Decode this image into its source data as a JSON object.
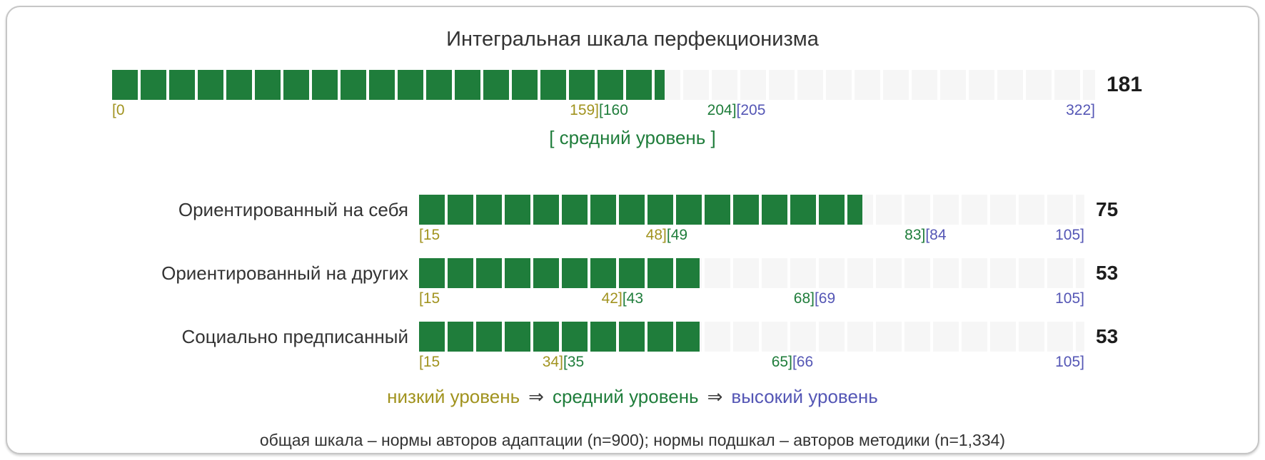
{
  "title": "Интегральная шкала перфекционизма",
  "colors": {
    "fill": "#1f7d3b",
    "empty": "#f6f6f6",
    "low": "#a1931f",
    "mid": "#1f7d3b",
    "high": "#5456b5",
    "value": "#1d1d1d",
    "text": "#333333",
    "arrow": "#3c3c3c"
  },
  "main_scale": {
    "value": 181,
    "value_label": "181",
    "min": 0,
    "max": 322,
    "level_label": "[ средний уровень ]",
    "ticks": [
      {
        "align": "left",
        "parts": [
          {
            "text": "[0",
            "level": "low"
          }
        ]
      },
      {
        "align": "center",
        "between": [
          159,
          160
        ],
        "parts": [
          {
            "text": "159]",
            "level": "low"
          },
          {
            "text": "[160",
            "level": "mid"
          }
        ]
      },
      {
        "align": "center",
        "between": [
          204,
          205
        ],
        "parts": [
          {
            "text": "204]",
            "level": "mid"
          },
          {
            "text": "[205",
            "level": "high"
          }
        ]
      },
      {
        "align": "right",
        "parts": [
          {
            "text": "322]",
            "level": "high"
          }
        ]
      }
    ]
  },
  "subscales": [
    {
      "label": "Ориентированный на себя",
      "value": 75,
      "value_label": "75",
      "min": 15,
      "max": 105,
      "ticks": [
        {
          "align": "left",
          "parts": [
            {
              "text": "[15",
              "level": "low"
            }
          ]
        },
        {
          "align": "center",
          "between": [
            48,
            49
          ],
          "parts": [
            {
              "text": "48]",
              "level": "low"
            },
            {
              "text": "[49",
              "level": "mid"
            }
          ]
        },
        {
          "align": "center",
          "between": [
            83,
            84
          ],
          "parts": [
            {
              "text": "83]",
              "level": "mid"
            },
            {
              "text": "[84",
              "level": "high"
            }
          ]
        },
        {
          "align": "right",
          "parts": [
            {
              "text": "105]",
              "level": "high"
            }
          ]
        }
      ]
    },
    {
      "label": "Ориентированный на других",
      "value": 53,
      "value_label": "53",
      "min": 15,
      "max": 105,
      "ticks": [
        {
          "align": "left",
          "parts": [
            {
              "text": "[15",
              "level": "low"
            }
          ]
        },
        {
          "align": "center",
          "between": [
            42,
            43
          ],
          "parts": [
            {
              "text": "42]",
              "level": "low"
            },
            {
              "text": "[43",
              "level": "mid"
            }
          ]
        },
        {
          "align": "center",
          "between": [
            68,
            69
          ],
          "parts": [
            {
              "text": "68]",
              "level": "mid"
            },
            {
              "text": "[69",
              "level": "high"
            }
          ]
        },
        {
          "align": "right",
          "parts": [
            {
              "text": "105]",
              "level": "high"
            }
          ]
        }
      ]
    },
    {
      "label": "Социально предписанный",
      "value": 53,
      "value_label": "53",
      "min": 15,
      "max": 105,
      "ticks": [
        {
          "align": "left",
          "parts": [
            {
              "text": "[15",
              "level": "low"
            }
          ]
        },
        {
          "align": "center",
          "between": [
            34,
            35
          ],
          "parts": [
            {
              "text": "34]",
              "level": "low"
            },
            {
              "text": "[35",
              "level": "mid"
            }
          ]
        },
        {
          "align": "center",
          "between": [
            65,
            66
          ],
          "parts": [
            {
              "text": "65]",
              "level": "mid"
            },
            {
              "text": "[66",
              "level": "high"
            }
          ]
        },
        {
          "align": "right",
          "parts": [
            {
              "text": "105]",
              "level": "high"
            }
          ]
        }
      ]
    }
  ],
  "legend": {
    "low": "низкий уровень",
    "arrow": "⇒",
    "mid": "средний уровень",
    "high": "высокий уровень"
  },
  "footnote": "общая шкала – нормы авторов адаптации (n=900); нормы подшкал – авторов методики (n=1,334)",
  "chart_data": {
    "type": "bar",
    "title": "Интегральная шкала перфекционизма",
    "categories": [
      "Интегральная шкала перфекционизма",
      "Ориентированный на себя",
      "Ориентированный на других",
      "Социально предписанный"
    ],
    "values": [
      181,
      75,
      53,
      53
    ],
    "axis_ranges": [
      [
        0,
        322
      ],
      [
        15,
        105
      ],
      [
        15,
        105
      ],
      [
        15,
        105
      ]
    ],
    "level_zones": [
      {
        "category": "Интегральная шкала перфекционизма",
        "low": [
          0,
          159
        ],
        "mid": [
          160,
          204
        ],
        "high": [
          205,
          322
        ]
      },
      {
        "category": "Ориентированный на себя",
        "low": [
          15,
          48
        ],
        "mid": [
          49,
          83
        ],
        "high": [
          84,
          105
        ]
      },
      {
        "category": "Ориентированный на других",
        "low": [
          15,
          42
        ],
        "mid": [
          43,
          68
        ],
        "high": [
          69,
          105
        ]
      },
      {
        "category": "Социально предписанный",
        "low": [
          15,
          34
        ],
        "mid": [
          35,
          65
        ],
        "high": [
          66,
          105
        ]
      }
    ],
    "result_level": "средний уровень",
    "legend": [
      "низкий уровень",
      "средний уровень",
      "высокий уровень"
    ],
    "legend_position": "bottom",
    "grid": false
  }
}
